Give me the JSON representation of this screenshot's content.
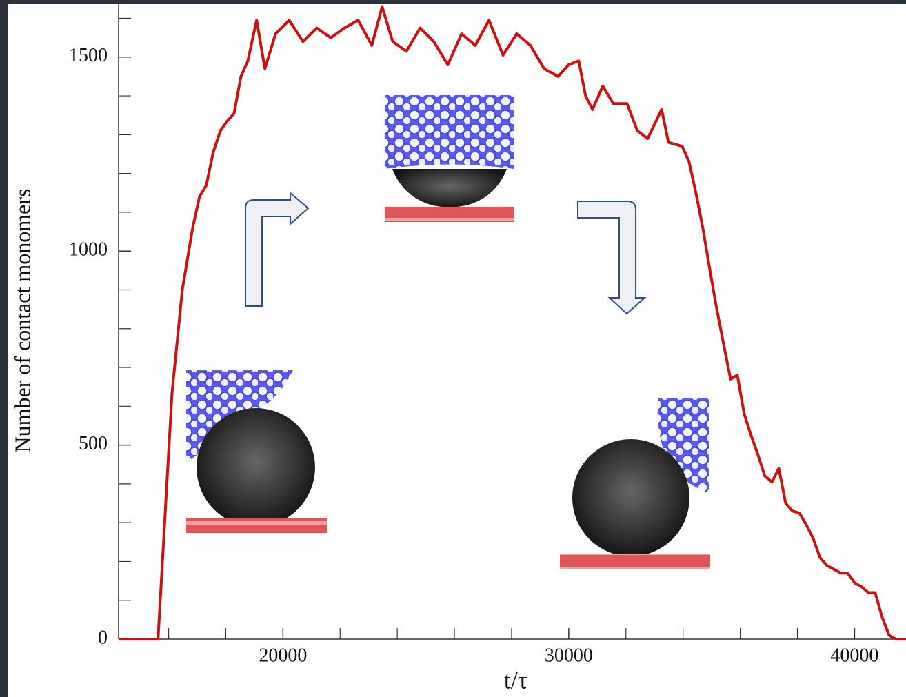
{
  "chart_data": {
    "type": "line",
    "x_label": "t/τ",
    "y_label": "Number of contact monomers",
    "x": [
      14250,
      15630,
      16120,
      16480,
      16840,
      17080,
      17320,
      17560,
      17810,
      18050,
      18290,
      18530,
      18770,
      19080,
      19370,
      19740,
      20220,
      20700,
      21180,
      21670,
      22150,
      22630,
      23110,
      23470,
      23840,
      24320,
      24800,
      25280,
      25770,
      26250,
      26730,
      27210,
      27700,
      28180,
      28660,
      29140,
      29630,
      29990,
      30350,
      30590,
      30830,
      31190,
      31560,
      32040,
      32400,
      32760,
      33250,
      33490,
      33970,
      34210,
      34450,
      34690,
      34930,
      35180,
      35420,
      35660,
      35900,
      36140,
      36380,
      36620,
      36860,
      37110,
      37350,
      37590,
      37830,
      38070,
      38310,
      38550,
      38790,
      39030,
      39280,
      39520,
      39760,
      40000,
      40240,
      40480,
      40720,
      40970,
      41210,
      41450,
      41800
    ],
    "values": [
      0,
      0,
      635,
      900,
      1060,
      1140,
      1170,
      1255,
      1310,
      1335,
      1355,
      1450,
      1490,
      1595,
      1470,
      1560,
      1595,
      1540,
      1575,
      1550,
      1575,
      1595,
      1530,
      1630,
      1540,
      1515,
      1575,
      1540,
      1480,
      1560,
      1530,
      1595,
      1505,
      1560,
      1530,
      1470,
      1450,
      1480,
      1490,
      1400,
      1365,
      1425,
      1380,
      1380,
      1310,
      1290,
      1365,
      1280,
      1270,
      1230,
      1150,
      1060,
      955,
      850,
      760,
      670,
      680,
      580,
      525,
      475,
      420,
      405,
      440,
      350,
      330,
      325,
      295,
      260,
      210,
      190,
      180,
      170,
      170,
      145,
      135,
      120,
      120,
      55,
      10,
      0,
      0
    ],
    "color": "#cc1111",
    "xlim": [
      14250,
      41800
    ],
    "ylim": [
      0,
      1640
    ],
    "xticks": [
      20000,
      30000,
      40000
    ],
    "xminorticks": [
      16000,
      18000,
      22000,
      24000,
      26000,
      28000,
      32000,
      34000,
      36000,
      38000
    ],
    "yticks": [
      0,
      500,
      1000,
      1500
    ],
    "yminorticks": [
      100,
      200,
      300,
      400,
      600,
      700,
      800,
      900,
      1100,
      1200,
      1300,
      1400,
      1600
    ]
  }
}
